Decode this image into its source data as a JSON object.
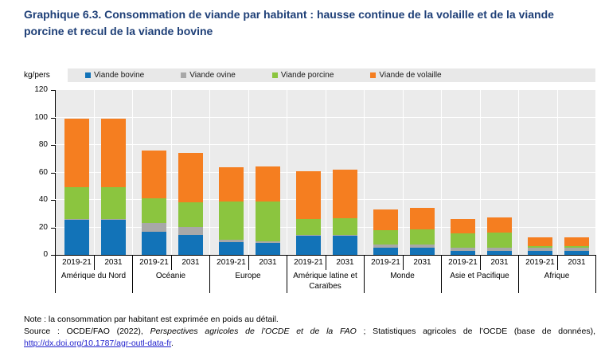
{
  "title": "Graphique 6.3. Consommation de viande par habitant : hausse continue de la volaille et de la viande porcine et recul de la viande bovine",
  "y_axis_unit": "kg/pers",
  "note": "Note : la consommation par habitant est exprimée en poids au détail.",
  "source": {
    "prefix": "Source : OCDE/FAO (2022), ",
    "publication": "Perspectives agricoles de l’OCDE et de la FAO",
    "middle": " ; Statistiques agricoles de l’OCDE (base de données), ",
    "link": "http://dx.doi.org/10.1787/agr-outl-data-fr",
    "after_link": "."
  },
  "colors": {
    "title_text": "#1e3f77",
    "plot_background": "#ebebeb",
    "legend_background": "#e8e8e8",
    "gridline": "#ffffff",
    "axis": "#000000",
    "link": "#2222cc"
  },
  "chart_data": {
    "type": "bar",
    "subtype": "stacked-vertical",
    "title": "Consommation de viande par habitant",
    "ylabel": "kg/pers",
    "ylim": [
      0,
      120
    ],
    "ytick_step": 20,
    "grid": true,
    "legend_position": "top",
    "groups": [
      "Amérique du Nord",
      "Océanie",
      "Europe",
      "Amérique latine et Caraïbes",
      "Monde",
      "Asie et Pacifique",
      "Afrique"
    ],
    "periods": [
      "2019-21",
      "2031"
    ],
    "series": [
      {
        "name": "Viande bovine",
        "color": "#1273b8",
        "values": [
          [
            25.5,
            25.5
          ],
          [
            17,
            14.5
          ],
          [
            9.5,
            8.5
          ],
          [
            14,
            14
          ],
          [
            5.5,
            5.5
          ],
          [
            3,
            3
          ],
          [
            3,
            3
          ]
        ]
      },
      {
        "name": "Viande ovine",
        "color": "#a8a8a8",
        "values": [
          [
            0.5,
            0.5
          ],
          [
            6,
            6
          ],
          [
            1.5,
            1.5
          ],
          [
            0.5,
            0.5
          ],
          [
            2,
            2
          ],
          [
            2,
            2.5
          ],
          [
            2,
            2
          ]
        ]
      },
      {
        "name": "Viande porcine",
        "color": "#8bc53f",
        "values": [
          [
            23,
            23
          ],
          [
            18,
            18
          ],
          [
            28,
            29
          ],
          [
            11.5,
            12
          ],
          [
            10.5,
            11
          ],
          [
            10.5,
            11
          ],
          [
            1.5,
            1.5
          ]
        ]
      },
      {
        "name": "Viande de volaille",
        "color": "#f57e20",
        "values": [
          [
            50,
            50
          ],
          [
            35,
            36
          ],
          [
            25,
            25.5
          ],
          [
            35,
            35.5
          ],
          [
            15,
            16
          ],
          [
            10.5,
            11
          ],
          [
            6,
            6.5
          ]
        ]
      }
    ]
  }
}
